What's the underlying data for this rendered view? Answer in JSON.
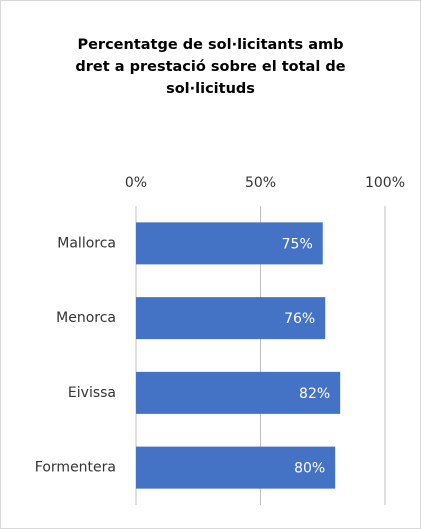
{
  "chart_data": {
    "type": "bar",
    "orientation": "horizontal",
    "title": "Percentatge de sol·licitants amb\ndret a prestació sobre el total de\nsol·licituds",
    "categories": [
      "Mallorca",
      "Menorca",
      "Eivissa",
      "Formentera"
    ],
    "values": [
      75,
      76,
      82,
      80
    ],
    "value_labels": [
      "75%",
      "76%",
      "82%",
      "80%"
    ],
    "color": "#4472c4",
    "xlim": [
      0,
      100
    ],
    "xticks": [
      {
        "value": 0,
        "label": "0%"
      },
      {
        "value": 50,
        "label": "50%"
      },
      {
        "value": 100,
        "label": "100%"
      }
    ],
    "grid": true
  }
}
